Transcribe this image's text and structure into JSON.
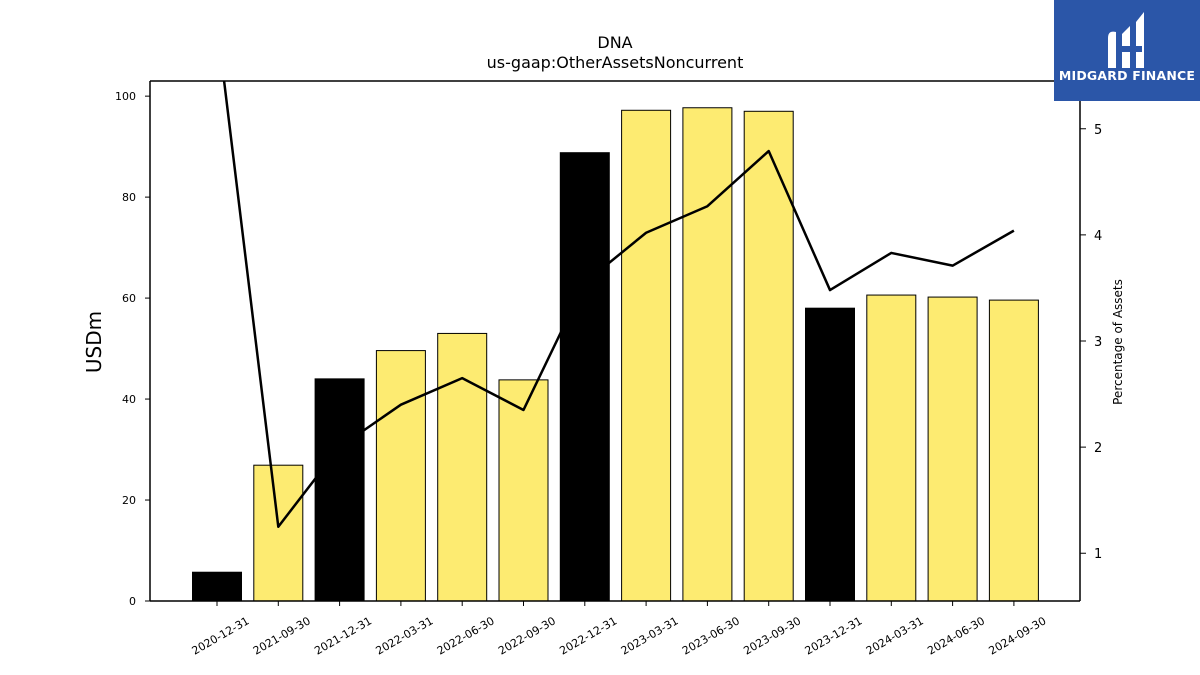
{
  "chart_data": {
    "type": "bar",
    "title": "DNA",
    "subtitle": "us-gaap:OtherAssetsNoncurrent",
    "ylabel": "USDm",
    "y2label": "Percentage of Assets",
    "ylim": [
      0,
      103
    ],
    "y2lim": [
      0.55,
      5.45
    ],
    "yticks": [
      0,
      20,
      40,
      60,
      80,
      100
    ],
    "y2ticks": [
      1,
      2,
      3,
      4,
      5
    ],
    "categories": [
      "2020-12-31",
      "2021-09-30",
      "2021-12-31",
      "2022-03-31",
      "2022-06-30",
      "2022-09-30",
      "2022-12-31",
      "2023-03-31",
      "2023-06-30",
      "2023-09-30",
      "2023-12-31",
      "2024-03-31",
      "2024-06-30",
      "2024-09-30"
    ],
    "series": [
      {
        "type": "bar",
        "values": [
          5.7,
          26.9,
          44.0,
          49.6,
          53.0,
          43.8,
          88.8,
          97.2,
          97.7,
          97.0,
          58.0,
          60.6,
          60.2,
          59.6
        ],
        "colors": [
          "#000000",
          "#fdeb71",
          "#000000",
          "#fdeb71",
          "#fdeb71",
          "#fdeb71",
          "#000000",
          "#fdeb71",
          "#fdeb71",
          "#fdeb71",
          "#000000",
          "#fdeb71",
          "#fdeb71",
          "#fdeb71"
        ]
      },
      {
        "type": "line",
        "axis": "right",
        "color": "#000000",
        "values": [
          6.0,
          1.25,
          2.0,
          2.4,
          2.65,
          2.35,
          3.55,
          4.02,
          4.27,
          4.79,
          3.48,
          3.83,
          3.71,
          4.04
        ]
      }
    ],
    "grid": false,
    "legend": "none"
  },
  "brand": {
    "name": "MIDGARD FINANCE",
    "color": "#2b56a8"
  }
}
